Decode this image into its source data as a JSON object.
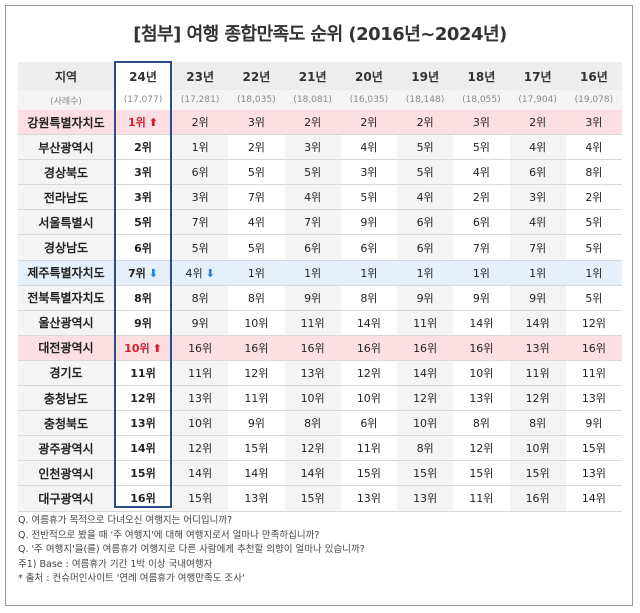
{
  "title": "[첨부] 여행 종합만족도 순위 (2016년~2024년)",
  "header": {
    "region_label": "지역",
    "years": [
      "24년",
      "23년",
      "22년",
      "21년",
      "20년",
      "19년",
      "18년",
      "17년",
      "16년"
    ]
  },
  "sample_row": {
    "label": "(사례수)",
    "values": [
      "(17,077)",
      "(17,281)",
      "(18,035)",
      "(18,081)",
      "(16,035)",
      "(18,148)",
      "(18,055)",
      "(17,904)",
      "(19,078)"
    ]
  },
  "rows": [
    {
      "region": "강원특별자치도",
      "ranks": [
        "1위",
        "2위",
        "3위",
        "2위",
        "2위",
        "2위",
        "3위",
        "2위",
        "3위"
      ]
    },
    {
      "region": "부산광역시",
      "ranks": [
        "2위",
        "1위",
        "2위",
        "3위",
        "4위",
        "5위",
        "5위",
        "4위",
        "4위"
      ]
    },
    {
      "region": "경상북도",
      "ranks": [
        "3위",
        "6위",
        "5위",
        "5위",
        "3위",
        "5위",
        "4위",
        "6위",
        "8위"
      ]
    },
    {
      "region": "전라남도",
      "ranks": [
        "3위",
        "3위",
        "7위",
        "4위",
        "5위",
        "4위",
        "2위",
        "3위",
        "2위"
      ]
    },
    {
      "region": "서울특별시",
      "ranks": [
        "5위",
        "7위",
        "4위",
        "7위",
        "9위",
        "6위",
        "6위",
        "4위",
        "5위"
      ]
    },
    {
      "region": "경상남도",
      "ranks": [
        "6위",
        "5위",
        "5위",
        "6위",
        "6위",
        "6위",
        "7위",
        "7위",
        "5위"
      ]
    },
    {
      "region": "제주특별자치도",
      "ranks": [
        "7위",
        "4위",
        "1위",
        "1위",
        "1위",
        "1위",
        "1위",
        "1위",
        "1위"
      ]
    },
    {
      "region": "전북특별자치도",
      "ranks": [
        "8위",
        "8위",
        "8위",
        "9위",
        "8위",
        "9위",
        "9위",
        "9위",
        "5위"
      ]
    },
    {
      "region": "울산광역시",
      "ranks": [
        "9위",
        "9위",
        "10위",
        "11위",
        "14위",
        "11위",
        "14위",
        "14위",
        "12위"
      ]
    },
    {
      "region": "대전광역시",
      "ranks": [
        "10위",
        "16위",
        "16위",
        "16위",
        "16위",
        "16위",
        "16위",
        "13위",
        "16위"
      ]
    },
    {
      "region": "경기도",
      "ranks": [
        "11위",
        "11위",
        "12위",
        "13위",
        "12위",
        "14위",
        "10위",
        "11위",
        "11위"
      ]
    },
    {
      "region": "충청남도",
      "ranks": [
        "12위",
        "13위",
        "11위",
        "10위",
        "10위",
        "12위",
        "13위",
        "12위",
        "13위"
      ]
    },
    {
      "region": "충청북도",
      "ranks": [
        "13위",
        "10위",
        "9위",
        "8위",
        "6위",
        "10위",
        "8위",
        "8위",
        "9위"
      ]
    },
    {
      "region": "광주광역시",
      "ranks": [
        "14위",
        "12위",
        "15위",
        "12위",
        "11위",
        "8위",
        "12위",
        "10위",
        "15위"
      ]
    },
    {
      "region": "인천광역시",
      "ranks": [
        "15위",
        "14위",
        "14위",
        "14위",
        "15위",
        "15위",
        "15위",
        "15위",
        "13위"
      ]
    },
    {
      "region": "대구광역시",
      "ranks": [
        "16위",
        "15위",
        "13위",
        "15위",
        "13위",
        "13위",
        "11위",
        "16위",
        "14위"
      ]
    }
  ],
  "arrows": {
    "up": "⬆",
    "down": "⬇"
  },
  "colors": {
    "highlight_pink": "#fbdfe3",
    "highlight_blue": "#e4f0fb",
    "up_arrow": "#d31f2a",
    "down_arrow": "#2f7fd8",
    "box_border": "#2c4d8a"
  },
  "notes": [
    "Q. 여름휴가 목적으로 다녀오신 여행지는 어디입니까?",
    "Q. 전반적으로 봤을 때 '주 여행지'에 대해 여행지로서 얼마나 만족하십니까?",
    "Q. '주 여행지'을(를) 여름휴가 여행지로 다른 사람에게 추천할 의향이 얼마나 있습니까?",
    "주1) Base : 여름휴가 기간 1박 이상 국내여행자",
    "* 출처 : 컨슈머인사이트 '연례 여름휴가 여행만족도 조사'"
  ]
}
